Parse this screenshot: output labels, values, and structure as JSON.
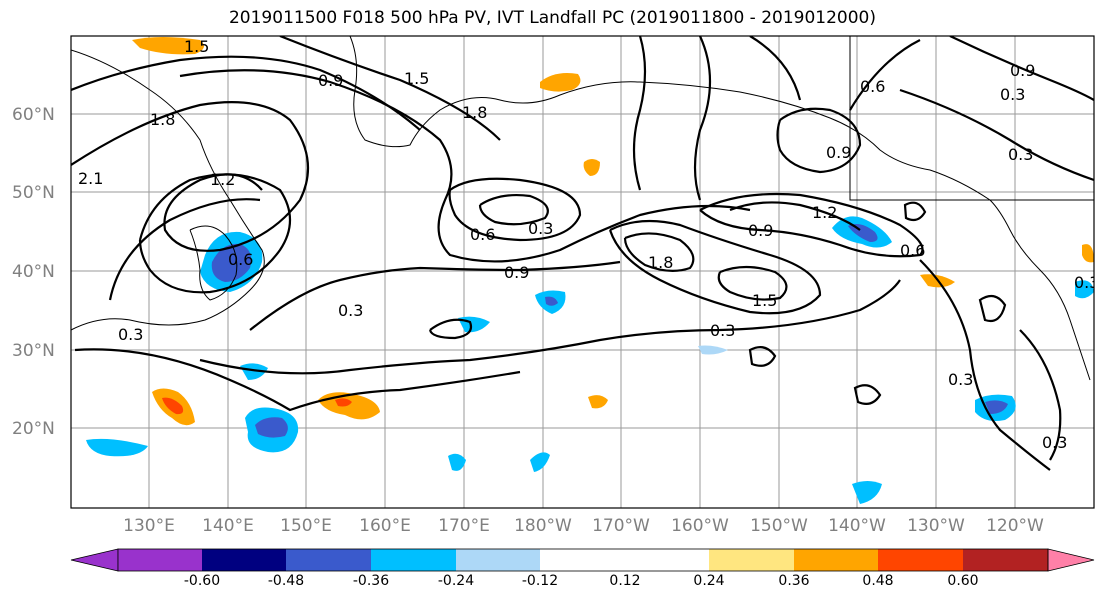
{
  "title": "2019011500 F018 500 hPa PV, IVT Landfall PC (2019011800 - 2019012000)",
  "lat_labels": [
    "60°N",
    "50°N",
    "40°N",
    "30°N",
    "20°N"
  ],
  "lon_labels": [
    "130°E",
    "140°E",
    "150°E",
    "160°E",
    "170°E",
    "180°W",
    "170°W",
    "160°W",
    "150°W",
    "140°W",
    "130°W",
    "120°W"
  ],
  "contour_labels": [
    "0.9",
    "1.5",
    "1.8",
    "0.6",
    "0.9",
    "0.3",
    "0.3",
    "0.6",
    "0.3",
    "0.9",
    "1.8",
    "1.5",
    "0.9",
    "1.2",
    "0.6",
    "0.3",
    "0.3",
    "0.3",
    "0.3",
    "0.3",
    "1.2",
    "1.8",
    "2.1",
    "0.6",
    "1.5",
    "0.9",
    "0.3"
  ],
  "colorbar": {
    "colors": [
      "#9932cc",
      "#000080",
      "#3a5acc",
      "#00bfff",
      "#add8f7",
      "#ffffff",
      "#ffffff",
      "#ffe680",
      "#ffa500",
      "#ff4500",
      "#b22222",
      "#ff80a8"
    ],
    "tick_labels": [
      "-0.60",
      "-0.48",
      "-0.36",
      "-0.24",
      "-0.12",
      "0.12",
      "0.24",
      "0.36",
      "0.48",
      "0.60"
    ]
  }
}
